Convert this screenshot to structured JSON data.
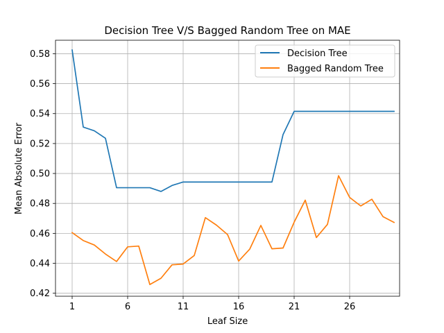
{
  "chart_data": {
    "type": "line",
    "title": "Decision Tree V/S Bagged Random Tree on MAE",
    "xlabel": "Leaf Size",
    "ylabel": "Mean Absolute Error",
    "x_ticks": [
      1,
      6,
      11,
      16,
      21,
      26
    ],
    "y_ticks": [
      "0.42",
      "0.44",
      "0.46",
      "0.48",
      "0.50",
      "0.52",
      "0.54",
      "0.56",
      "0.58"
    ],
    "xlim": [
      -0.5,
      30.5
    ],
    "ylim": [
      0.418,
      0.589
    ],
    "grid": true,
    "legend_position": "top-right",
    "x": [
      1,
      2,
      3,
      4,
      5,
      6,
      7,
      8,
      9,
      10,
      11,
      12,
      13,
      14,
      15,
      16,
      17,
      18,
      19,
      20,
      21,
      22,
      23,
      24,
      25,
      26,
      27,
      28,
      29,
      30
    ],
    "series": [
      {
        "name": "Decision Tree",
        "color": "#1f77b4",
        "values": [
          0.5825,
          0.531,
          0.5285,
          0.5235,
          0.4905,
          0.4905,
          0.4905,
          0.4905,
          0.488,
          0.492,
          0.4943,
          0.4943,
          0.4943,
          0.4943,
          0.4943,
          0.4943,
          0.4943,
          0.4943,
          0.4943,
          0.526,
          0.5415,
          0.5415,
          0.5415,
          0.5415,
          0.5415,
          0.5415,
          0.5415,
          0.5415,
          0.5415,
          0.5415
        ]
      },
      {
        "name": "Bagged Random Tree",
        "color": "#ff7f0e",
        "values": [
          0.4605,
          0.4552,
          0.4522,
          0.4462,
          0.4412,
          0.451,
          0.4515,
          0.4258,
          0.43,
          0.439,
          0.4395,
          0.4452,
          0.4705,
          0.4655,
          0.4592,
          0.4415,
          0.4495,
          0.4653,
          0.4497,
          0.4502,
          0.4675,
          0.4822,
          0.4572,
          0.466,
          0.4985,
          0.484,
          0.4783,
          0.4828,
          0.4712,
          0.4673
        ]
      }
    ]
  }
}
